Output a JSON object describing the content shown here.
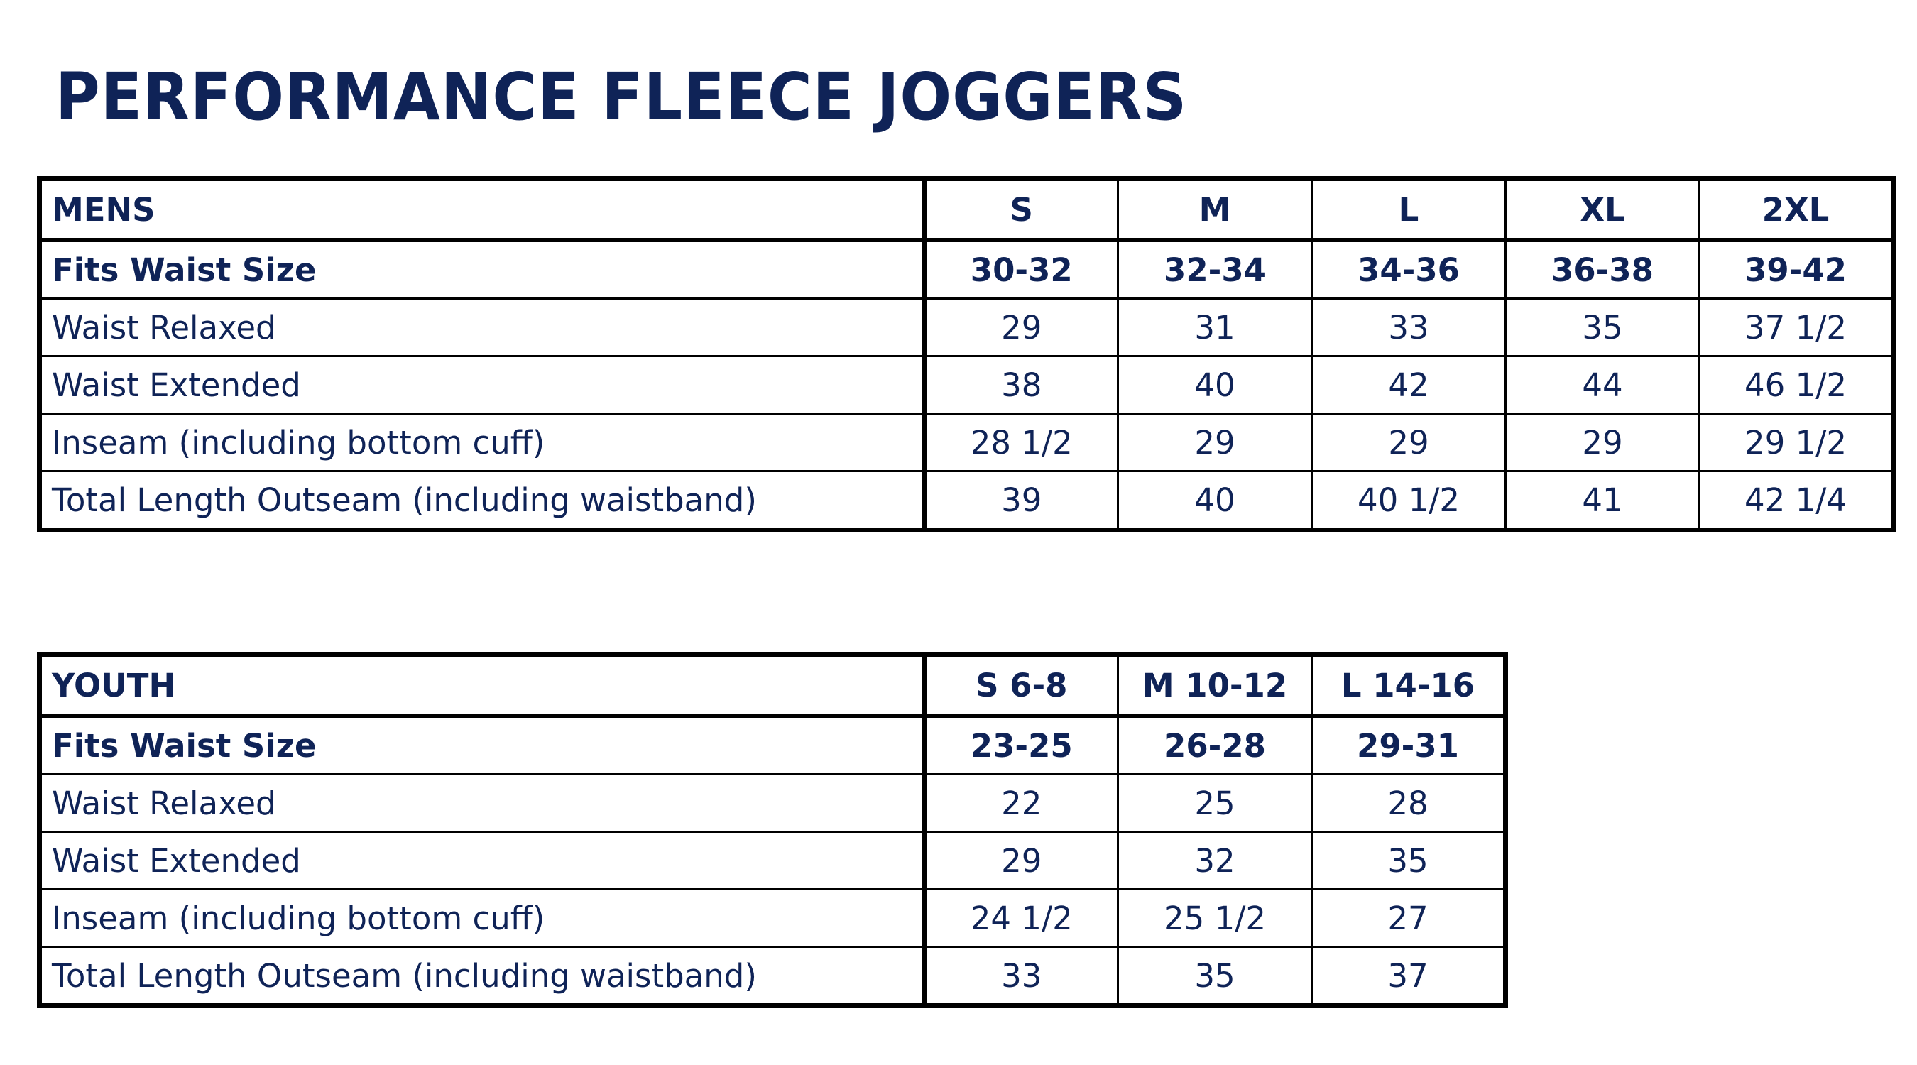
{
  "title": "PERFORMANCE FLEECE JOGGERS",
  "mens": {
    "header_label": "MENS",
    "sizes": [
      "S",
      "M",
      "L",
      "XL",
      "2XL"
    ],
    "rows": [
      {
        "label": "Fits Waist Size",
        "values": [
          "30-32",
          "32-34",
          "34-36",
          "36-38",
          "39-42"
        ]
      },
      {
        "label": "Waist Relaxed",
        "values": [
          "29",
          "31",
          "33",
          "35",
          "37 1/2"
        ]
      },
      {
        "label": "Waist Extended",
        "values": [
          "38",
          "40",
          "42",
          "44",
          "46 1/2"
        ]
      },
      {
        "label": "Inseam (including bottom cuff)",
        "values": [
          "28 1/2",
          "29",
          "29",
          "29",
          "29 1/2"
        ]
      },
      {
        "label": "Total Length Outseam (including waistband)",
        "values": [
          "39",
          "40",
          "40 1/2",
          "41",
          "42 1/4"
        ]
      }
    ]
  },
  "youth": {
    "header_label": "YOUTH",
    "sizes": [
      "S 6-8",
      "M 10-12",
      "L 14-16"
    ],
    "rows": [
      {
        "label": "Fits Waist Size",
        "values": [
          "23-25",
          "26-28",
          "29-31"
        ]
      },
      {
        "label": "Waist Relaxed",
        "values": [
          "22",
          "25",
          "28"
        ]
      },
      {
        "label": "Waist Extended",
        "values": [
          "29",
          "32",
          "35"
        ]
      },
      {
        "label": "Inseam (including bottom cuff)",
        "values": [
          "24 1/2",
          "25 1/2",
          "27"
        ]
      },
      {
        "label": "Total Length Outseam (including waistband)",
        "values": [
          "33",
          "35",
          "37"
        ]
      }
    ]
  },
  "colors": {
    "text": "#0f2357",
    "border": "#000000",
    "background": "#ffffff"
  }
}
